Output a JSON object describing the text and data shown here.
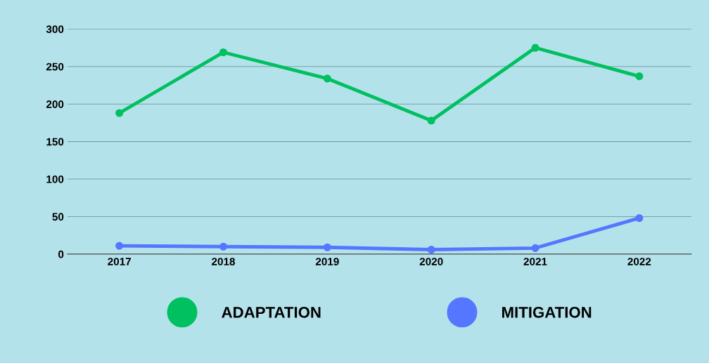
{
  "chart_data": {
    "type": "line",
    "categories": [
      "2017",
      "2018",
      "2019",
      "2020",
      "2021",
      "2022"
    ],
    "series": [
      {
        "name": "ADAPTATION",
        "color": "#00c060",
        "values": [
          188,
          269,
          234,
          178,
          275,
          237
        ]
      },
      {
        "name": "MITIGATION",
        "color": "#5577ff",
        "values": [
          11,
          10,
          9,
          6,
          8,
          48
        ]
      }
    ],
    "ylim": [
      0,
      300
    ],
    "yticks": [
      0,
      50,
      100,
      150,
      200,
      250,
      300
    ],
    "grid": "y",
    "legend": "bottom",
    "marker": "circle",
    "line_style": "solid"
  }
}
